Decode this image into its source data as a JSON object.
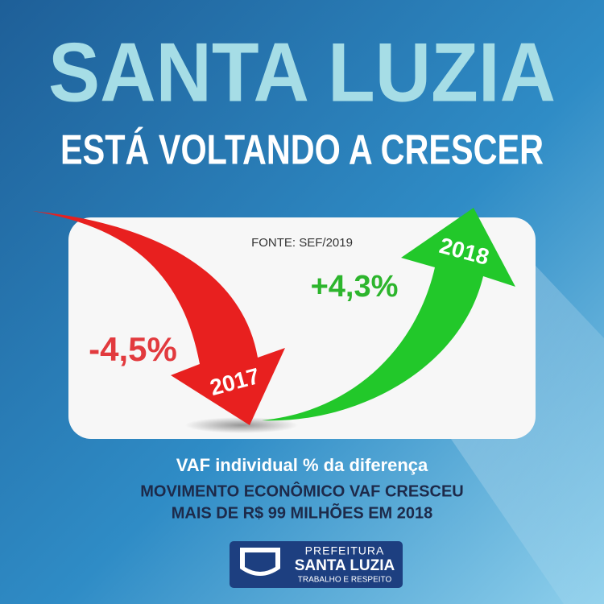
{
  "header": {
    "title": "SANTA LUZIA",
    "subtitle": "ESTÁ VOLTANDO A CRESCER"
  },
  "panel": {
    "source": "FONTE: SEF/2019",
    "items": [
      {
        "change": "-4,5%",
        "year": "2017"
      },
      {
        "change": "+4,3%",
        "year": "2018"
      }
    ]
  },
  "caption": {
    "lead": "VAF individual % da diferença",
    "lines": [
      "MOVIMENTO ECONÔMICO VAF  CRESCEU",
      "MAIS DE  R$ 99 MILHÕES EM 2018"
    ]
  },
  "logo": {
    "name_top": "PREFEITURA",
    "name": "SANTA LUZIA",
    "motto": "TRABALHO E RESPEITO"
  }
}
